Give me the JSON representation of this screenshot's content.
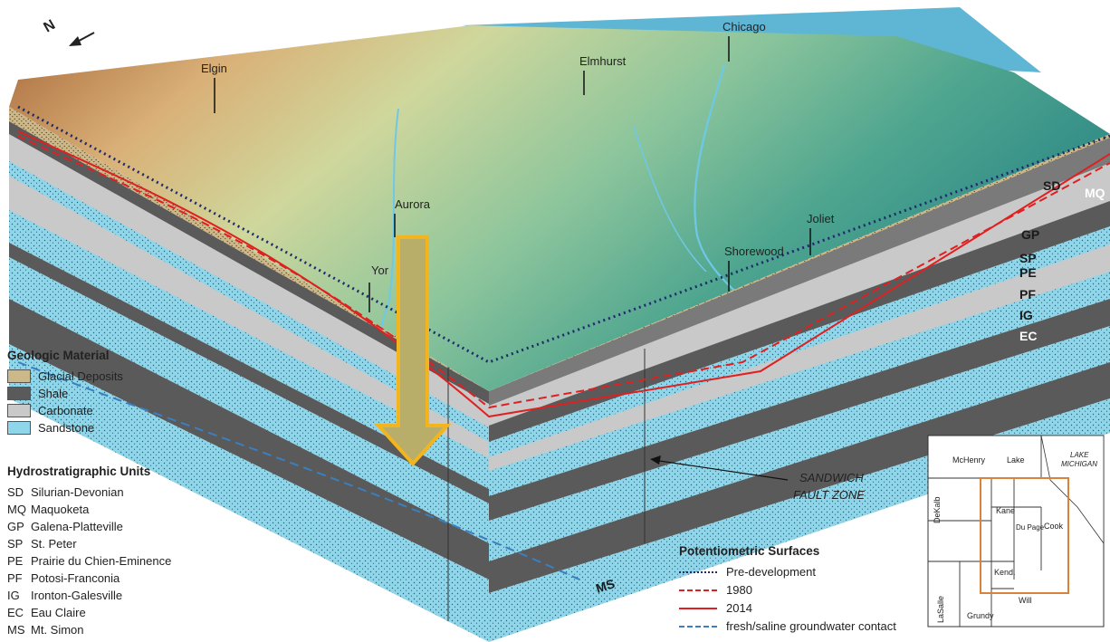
{
  "geologic_material": {
    "title": "Geologic Material",
    "items": [
      {
        "label": "Glacial Deposits",
        "color": "#cdb88a"
      },
      {
        "label": "Shale",
        "color": "#5a5a5a"
      },
      {
        "label": "Carbonate",
        "color": "#c9c9c9"
      },
      {
        "label": "Sandstone",
        "color": "#8fd6ea"
      }
    ]
  },
  "hydro_units": {
    "title": "Hydrostratigraphic Units",
    "items": [
      {
        "abbr": "SD",
        "name": "Silurian-Devonian"
      },
      {
        "abbr": "MQ",
        "name": "Maquoketa"
      },
      {
        "abbr": "GP",
        "name": "Galena-Platteville"
      },
      {
        "abbr": "SP",
        "name": "St. Peter"
      },
      {
        "abbr": "PE",
        "name": "Prairie du Chien-Eminence"
      },
      {
        "abbr": "PF",
        "name": "Potosi-Franconia"
      },
      {
        "abbr": "IG",
        "name": "Ironton-Galesville"
      },
      {
        "abbr": "EC",
        "name": "Eau Claire"
      },
      {
        "abbr": "MS",
        "name": "Mt. Simon"
      }
    ]
  },
  "potentiometric": {
    "title": "Potentiometric Surfaces",
    "items": [
      {
        "label": "Pre-development",
        "color": "#1f2a6b",
        "style": "dotted"
      },
      {
        "label": "1980",
        "color": "#e02020",
        "style": "dashed"
      },
      {
        "label": "2014",
        "color": "#e02020",
        "style": "solid"
      },
      {
        "label": "fresh/saline groundwater contact",
        "color": "#3a7fc0",
        "style": "dashed"
      }
    ]
  },
  "cities": {
    "chicago": "Chicago",
    "elmhurst": "Elmhurst",
    "elgin": "Elgin",
    "aurora": "Aurora",
    "yorkville": "Yor",
    "joliet": "Joliet",
    "shorewood": "Shorewood"
  },
  "north_label": "N",
  "fault_label": [
    "SANDWICH",
    "FAULT ZONE"
  ],
  "unit_labels": {
    "sd": "SD",
    "mq": "MQ",
    "gp": "GP",
    "sp": "SP",
    "pe": "PE",
    "pf": "PF",
    "ig": "IG",
    "ec": "EC",
    "ms": "MS"
  },
  "inset_map": {
    "counties": [
      "McHenry",
      "Lake",
      "DeKalb",
      "Kane",
      "Du Page",
      "Cook",
      "Kend.",
      "LaSalle",
      "Grundy",
      "Will"
    ],
    "lake_label": [
      "LAKE",
      "MICHIGAN"
    ],
    "highlight_color": "#d9823b"
  },
  "colors": {
    "sandstone": "#8fd6ea",
    "carbonate": "#c9c9c9",
    "shale": "#5a5a5a",
    "glacial": "#cdb88a",
    "lake": "#5fb6d4",
    "arrow_fill": "#b9ad6a",
    "arrow_outline": "#f2b51d"
  }
}
